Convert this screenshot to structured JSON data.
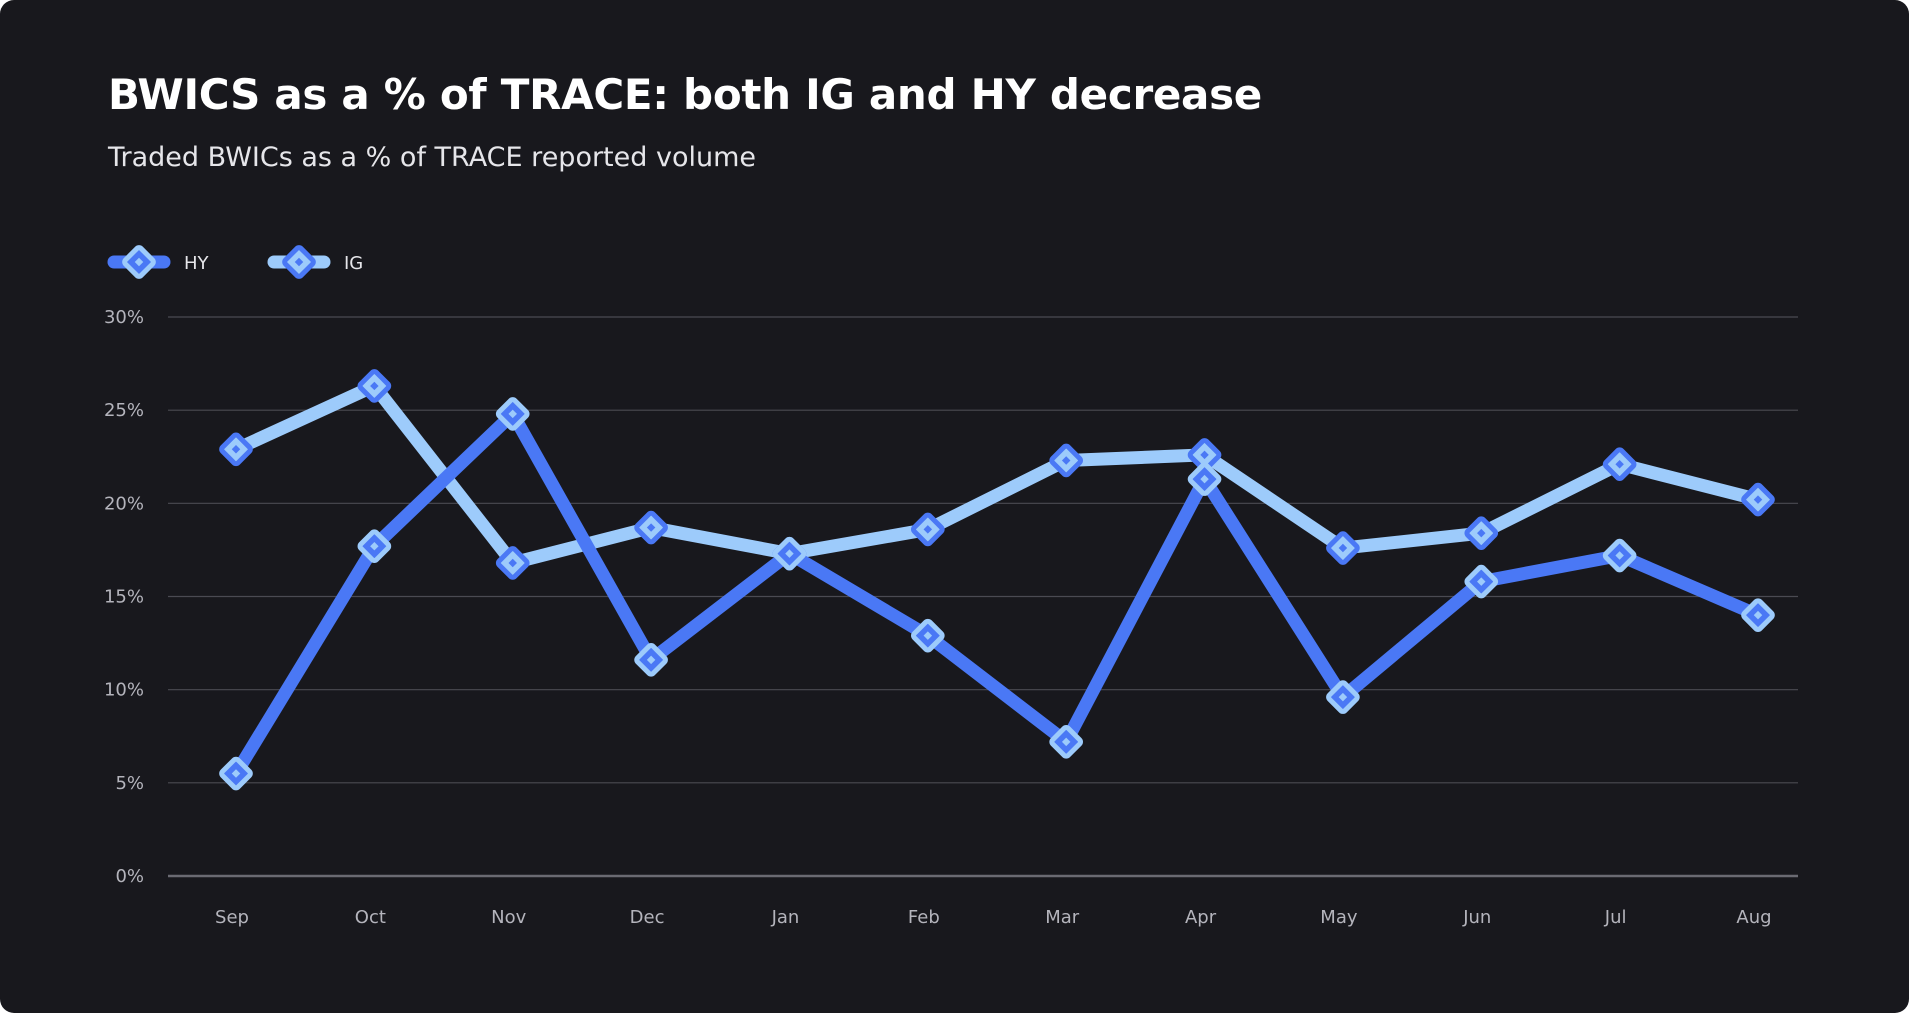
{
  "title": "BWICS as a % of TRACE: both IG and HY decrease",
  "subtitle": "Traded BWICs as a % of TRACE reported volume",
  "colors": {
    "background": "#18181d",
    "hy": "#4a78f5",
    "ig": "#9dcbfb",
    "grid": "#4a4a52",
    "baseline": "#6a6a72"
  },
  "legend": [
    {
      "name": "HY",
      "line_color": "#4a78f5",
      "marker_color": "#9dcbfb"
    },
    {
      "name": "IG",
      "line_color": "#9dcbfb",
      "marker_color": "#4a78f5"
    }
  ],
  "chart_data": {
    "type": "line",
    "title": "BWICS as a % of TRACE: both IG and HY decrease",
    "subtitle": "Traded BWICs as a % of TRACE reported volume",
    "xlabel": "",
    "ylabel": "",
    "categories": [
      "Sep",
      "Oct",
      "Nov",
      "Dec",
      "Jan",
      "Feb",
      "Mar",
      "Apr",
      "May",
      "Jun",
      "Jul",
      "Aug"
    ],
    "ylim": [
      0,
      30
    ],
    "yticks": [
      0,
      5,
      10,
      15,
      20,
      25,
      30
    ],
    "ytick_labels": [
      "0%",
      "5%",
      "10%",
      "15%",
      "20%",
      "25%",
      "30%"
    ],
    "grid": true,
    "legend_position": "top-left",
    "series": [
      {
        "name": "HY",
        "values": [
          5.5,
          17.7,
          24.8,
          11.6,
          17.3,
          12.9,
          7.2,
          21.3,
          9.6,
          15.8,
          17.2,
          14.0
        ]
      },
      {
        "name": "IG",
        "values": [
          22.9,
          26.3,
          16.8,
          18.7,
          17.3,
          18.6,
          22.3,
          22.6,
          17.6,
          18.4,
          22.1,
          20.2
        ]
      }
    ]
  }
}
